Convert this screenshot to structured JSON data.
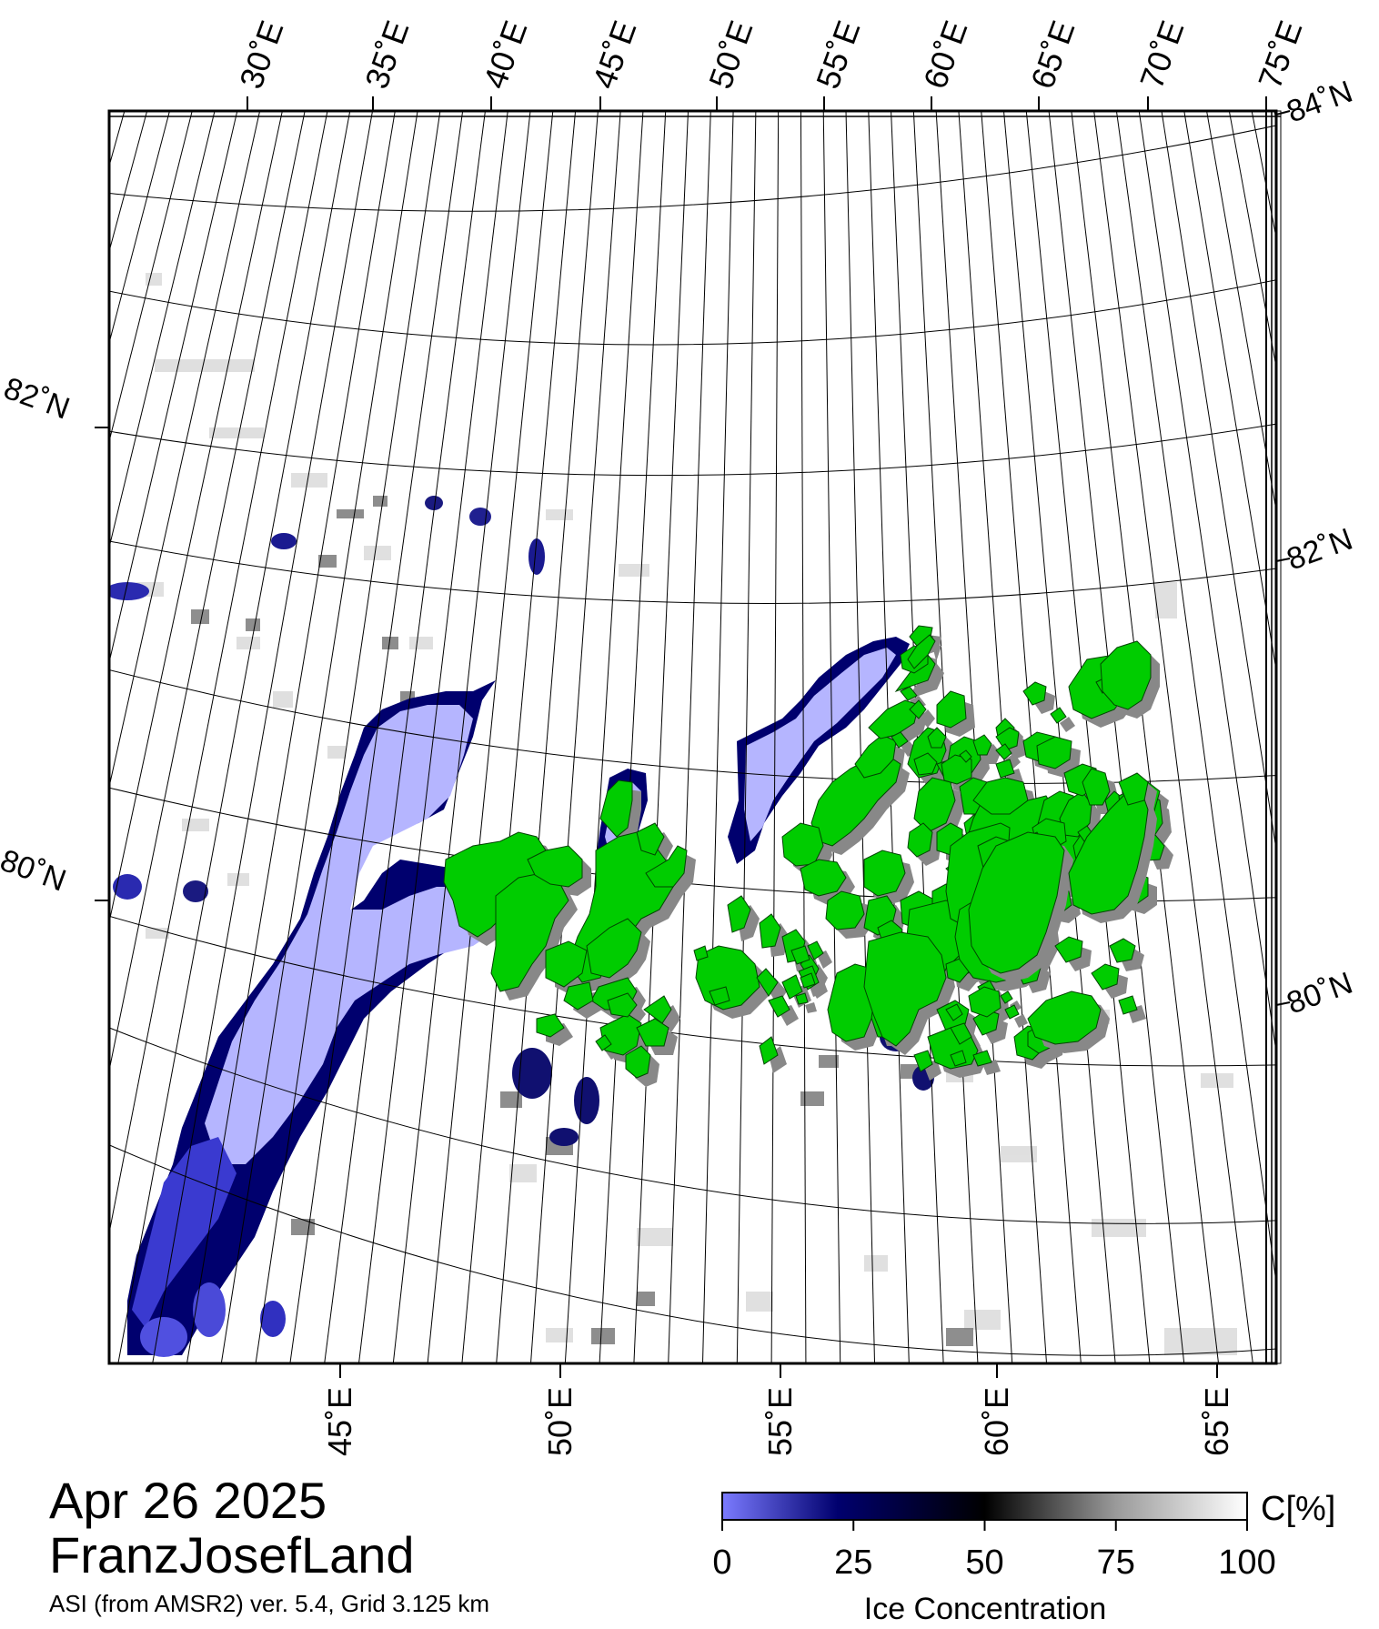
{
  "map": {
    "date": "Apr 26 2025",
    "region": "FranzJosefLand",
    "source": "ASI (from AMSR2) ver. 5.4,  Grid 3.125 km",
    "top_lon_labels": [
      "30˚E",
      "35˚E",
      "40˚E",
      "45˚E",
      "50˚E",
      "55˚E",
      "60˚E",
      "65˚E",
      "70˚E",
      "75˚E"
    ],
    "bottom_lon_labels": [
      "45˚E",
      "50˚E",
      "55˚E",
      "60˚E",
      "65˚E"
    ],
    "left_lat_labels": [
      "82˚N",
      "80˚N"
    ],
    "right_lat_labels": [
      "84˚N",
      "82˚N",
      "80˚N"
    ],
    "land_color": "#00cc00",
    "land_shadow_color": "#888888"
  },
  "colorbar": {
    "unit": "C[%]",
    "title": "Ice Concentration",
    "ticks": [
      "0",
      "25",
      "50",
      "75",
      "100"
    ],
    "stops": [
      "#7b7bff",
      "#00006e",
      "#000000",
      "#9a9a9a",
      "#ffffff"
    ]
  }
}
